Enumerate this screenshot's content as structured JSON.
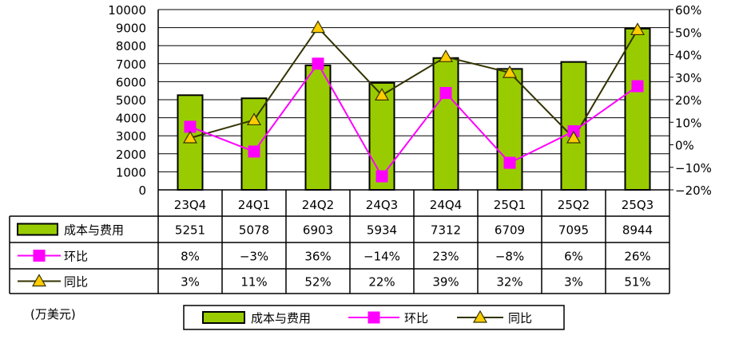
{
  "chart_data": {
    "type": "bar",
    "categories": [
      "23Q4",
      "24Q1",
      "24Q2",
      "24Q3",
      "24Q4",
      "25Q1",
      "25Q2",
      "25Q3"
    ],
    "series": [
      {
        "name": "成本与费用",
        "type": "bar",
        "axis": "left",
        "color": "#99cc00",
        "values": [
          5251,
          5078,
          6903,
          5934,
          7312,
          6709,
          7095,
          8944
        ],
        "labels": [
          "5251",
          "5078",
          "6903",
          "5934",
          "7312",
          "6709",
          "7095",
          "8944"
        ]
      },
      {
        "name": "环比",
        "type": "line",
        "axis": "right",
        "color": "#ff00ff",
        "values": [
          8,
          -3,
          36,
          -14,
          23,
          -8,
          6,
          26
        ],
        "labels": [
          "8%",
          "−3%",
          "36%",
          "−14%",
          "23%",
          "−8%",
          "6%",
          "26%"
        ]
      },
      {
        "name": "同比",
        "type": "line",
        "axis": "right",
        "color": "#333300",
        "marker_fill": "#ffcc00",
        "values": [
          3,
          11,
          52,
          22,
          39,
          32,
          3,
          51
        ],
        "labels": [
          "3%",
          "11%",
          "52%",
          "22%",
          "39%",
          "32%",
          "3%",
          "51%"
        ]
      }
    ],
    "y_left": {
      "ylim": [
        0,
        10000
      ],
      "ticks": [
        "0",
        "1000",
        "2000",
        "3000",
        "4000",
        "5000",
        "6000",
        "7000",
        "8000",
        "9000",
        "10000"
      ]
    },
    "y_right": {
      "ylim": [
        -20,
        60
      ],
      "ticks": [
        "−20%",
        "−10%",
        "0%",
        "10%",
        "20%",
        "30%",
        "40%",
        "50%",
        "60%"
      ]
    },
    "grid": true,
    "legend": {
      "position": "bottom",
      "items": [
        "成本与费用",
        "环比",
        "同比"
      ]
    },
    "data_table": true,
    "unit_label": "(万美元)"
  }
}
